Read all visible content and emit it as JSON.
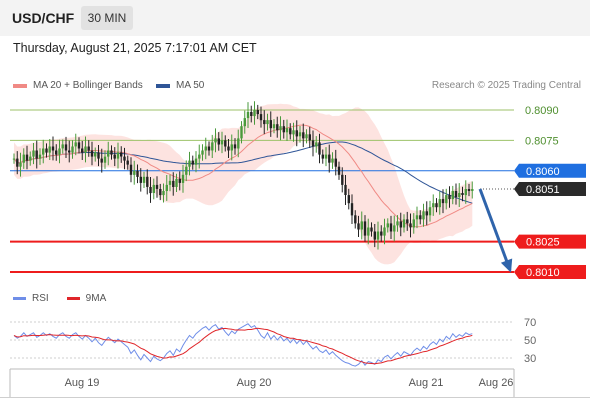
{
  "header": {
    "symbol": "USD/CHF",
    "interval": "30 MIN",
    "datetime": "Thursday, August 21, 2025 7:17:01 AM CET"
  },
  "legend": {
    "ma20": "MA 20 + Bollinger Bands",
    "ma50": "MA 50",
    "credit": "Research © 2025 Trading Central"
  },
  "rsi_legend": {
    "rsi": "RSI",
    "ma": "9MA"
  },
  "colors": {
    "up": "#4a9a3c",
    "down": "#222222",
    "ma20": "#f08a85",
    "ma50": "#2f5597",
    "band_fill": "#fde0dd",
    "rsi": "#6f8ee8",
    "rsi_ma": "#e0262a",
    "support": "#ee1c1c",
    "resistance": "#9dc26a",
    "pivot": "#1f6fe0",
    "arrow": "#2f64ab"
  },
  "chart_data": [
    {
      "type": "candlestick",
      "title": "",
      "xlabel": "",
      "ylabel": "",
      "x_ticks": [
        "Aug 19",
        "Aug 20",
        "Aug 21",
        "Aug 26"
      ],
      "ylim": [
        0.8006,
        0.8096
      ],
      "levels": [
        {
          "label": "0.8090",
          "value": 0.809,
          "kind": "resistance"
        },
        {
          "label": "0.8075",
          "value": 0.8075,
          "kind": "resistance"
        },
        {
          "label": "0.8060",
          "value": 0.806,
          "kind": "pivot"
        },
        {
          "label": "0.8051",
          "value": 0.8051,
          "kind": "last"
        },
        {
          "label": "0.8025",
          "value": 0.8025,
          "kind": "support"
        },
        {
          "label": "0.8010",
          "value": 0.801,
          "kind": "support"
        }
      ],
      "last_price": 0.8051,
      "forecast": {
        "from": 0.8051,
        "to": 0.801
      },
      "closes": [
        0.8066,
        0.8062,
        0.8064,
        0.8068,
        0.8065,
        0.8067,
        0.807,
        0.8066,
        0.8068,
        0.8071,
        0.8069,
        0.8072,
        0.807,
        0.8068,
        0.8071,
        0.8073,
        0.807,
        0.8069,
        0.8072,
        0.8074,
        0.8071,
        0.8069,
        0.8072,
        0.807,
        0.8067,
        0.8069,
        0.8066,
        0.8064,
        0.8067,
        0.807,
        0.8068,
        0.8066,
        0.8069,
        0.8067,
        0.8065,
        0.8063,
        0.8058,
        0.806,
        0.8057,
        0.8054,
        0.8057,
        0.8052,
        0.8049,
        0.8053,
        0.8051,
        0.8048,
        0.805,
        0.8053,
        0.8055,
        0.8052,
        0.8056,
        0.8054,
        0.8058,
        0.8062,
        0.8065,
        0.8063,
        0.8066,
        0.8068,
        0.807,
        0.8072,
        0.807,
        0.8074,
        0.8076,
        0.8073,
        0.8075,
        0.8072,
        0.807,
        0.8073,
        0.8071,
        0.8076,
        0.8082,
        0.8086,
        0.8089,
        0.8087,
        0.809,
        0.8088,
        0.8085,
        0.8083,
        0.8085,
        0.8081,
        0.8083,
        0.808,
        0.8082,
        0.8079,
        0.8081,
        0.8078,
        0.808,
        0.8077,
        0.8079,
        0.8076,
        0.8078,
        0.8075,
        0.8072,
        0.8074,
        0.8068,
        0.8066,
        0.8068,
        0.8064,
        0.8066,
        0.8062,
        0.8058,
        0.8053,
        0.8048,
        0.8044,
        0.8038,
        0.8034,
        0.8031,
        0.8035,
        0.8028,
        0.8032,
        0.803,
        0.8026,
        0.803,
        0.8028,
        0.8032,
        0.8034,
        0.803,
        0.8033,
        0.8035,
        0.8032,
        0.8036,
        0.8034,
        0.8032,
        0.8036,
        0.8038,
        0.8036,
        0.804,
        0.8038,
        0.8042,
        0.8044,
        0.8042,
        0.8046,
        0.8044,
        0.8048,
        0.8046,
        0.805,
        0.8047,
        0.8049,
        0.8048,
        0.8051,
        0.805,
        0.8051
      ],
      "rsi": [
        55,
        52,
        54,
        58,
        54,
        56,
        58,
        53,
        55,
        58,
        55,
        57,
        54,
        52,
        56,
        58,
        54,
        52,
        56,
        58,
        54,
        51,
        55,
        52,
        48,
        52,
        47,
        44,
        49,
        53,
        50,
        47,
        51,
        48,
        45,
        42,
        35,
        39,
        33,
        28,
        34,
        30,
        26,
        32,
        29,
        27,
        30,
        35,
        38,
        33,
        40,
        37,
        44,
        50,
        55,
        52,
        57,
        60,
        63,
        65,
        61,
        65,
        67,
        62,
        64,
        59,
        55,
        60,
        57,
        62,
        64,
        66,
        68,
        64,
        66,
        61,
        55,
        52,
        58,
        51,
        55,
        50,
        54,
        49,
        52,
        47,
        51,
        46,
        50,
        45,
        49,
        44,
        40,
        43,
        38,
        36,
        39,
        34,
        37,
        33,
        30,
        27,
        25,
        24,
        22,
        21,
        23,
        27,
        22,
        26,
        25,
        23,
        28,
        26,
        31,
        33,
        29,
        33,
        36,
        32,
        37,
        35,
        33,
        38,
        41,
        38,
        43,
        40,
        45,
        48,
        45,
        51,
        48,
        54,
        51,
        57,
        53,
        56,
        54,
        58,
        56,
        57
      ]
    }
  ],
  "rsi_panel": {
    "ylim": [
      20,
      78
    ],
    "ticks": [
      "70",
      "50",
      "30"
    ],
    "tick_values": [
      70,
      50,
      30
    ]
  }
}
